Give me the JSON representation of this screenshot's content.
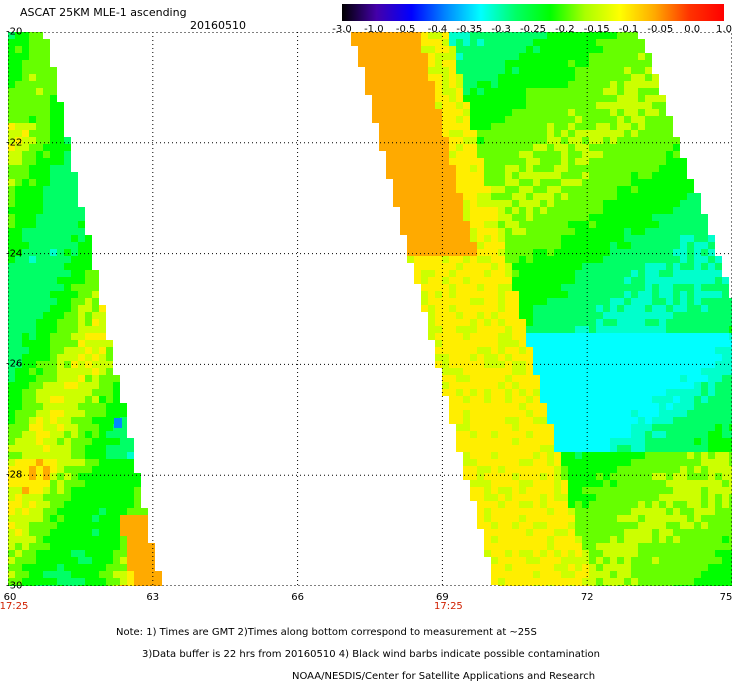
{
  "header": {
    "title": "ASCAT 25KM MLE-1 ascending",
    "date": "20160510"
  },
  "colorbar": {
    "labels": [
      "-3.0",
      "-1.0",
      "-0.5",
      "-0.4",
      "-0.35",
      "-0.3",
      "-0.25",
      "-0.2",
      "-0.15",
      "-0.1",
      "-0.05",
      "0.0",
      "1.0"
    ],
    "colors": [
      "#000000",
      "#4400aa",
      "#0000ff",
      "#0088ff",
      "#00ffff",
      "#00ff66",
      "#00ff00",
      "#aaff00",
      "#ffff00",
      "#ffaa00",
      "#ff3300",
      "#ff0000"
    ]
  },
  "map": {
    "lon_range": [
      60,
      75
    ],
    "lat_range": [
      -20,
      -30
    ],
    "x_ticks": [
      "60",
      "63",
      "66",
      "69",
      "72",
      "75"
    ],
    "y_ticks": [
      "-20",
      "-22",
      "-24",
      "-26",
      "-28",
      "-30"
    ],
    "time_labels": [
      {
        "lon": 60,
        "text": "17:25"
      },
      {
        "lon": 69,
        "text": "17:25"
      }
    ],
    "swath_colors": {
      "cyan": "#00ffff",
      "green": "#00ff00",
      "lime": "#66ff00",
      "yellow": "#ffff00",
      "orange": "#ff8800",
      "blue": "#0088ff"
    }
  },
  "notes": {
    "line1": "Note: 1) Times are GMT 2)Times along bottom correspond to measurement at ~25S",
    "line2": "3)Data buffer is 22 hrs from 20160510 4) Black wind barbs indicate possible contamination",
    "line3": "NOAA/NESDIS/Center for Satellite Applications and Research"
  }
}
